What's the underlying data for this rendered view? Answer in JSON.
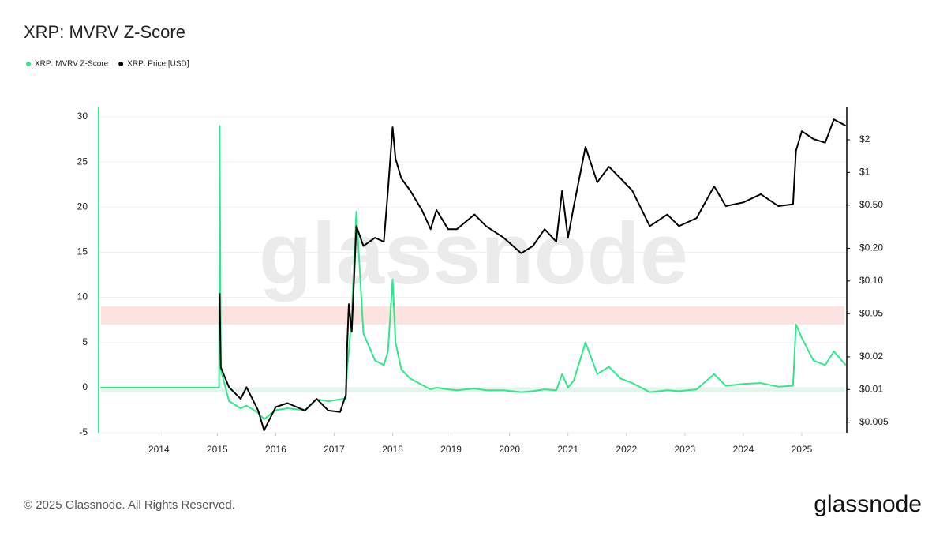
{
  "chart_data": {
    "type": "line",
    "title": "XRP: MVRV Z-Score",
    "x": [
      2013,
      2014,
      2015.03,
      2015.04,
      2015.06,
      2015.2,
      2015.4,
      2015.5,
      2015.7,
      2015.8,
      2016.0,
      2016.2,
      2016.5,
      2016.7,
      2016.9,
      2017.1,
      2017.2,
      2017.22,
      2017.25,
      2017.3,
      2017.38,
      2017.5,
      2017.7,
      2017.85,
      2017.92,
      2018.0,
      2018.05,
      2018.15,
      2018.3,
      2018.5,
      2018.65,
      2018.75,
      2018.95,
      2019.1,
      2019.4,
      2019.6,
      2019.9,
      2020.2,
      2020.4,
      2020.6,
      2020.8,
      2020.9,
      2021.0,
      2021.1,
      2021.3,
      2021.5,
      2021.7,
      2021.9,
      2022.1,
      2022.4,
      2022.7,
      2022.9,
      2023.2,
      2023.5,
      2023.7,
      2024.0,
      2024.3,
      2024.6,
      2024.85,
      2024.9,
      2025.0,
      2025.2,
      2025.4,
      2025.55,
      2025.75
    ],
    "series": [
      {
        "name": "XRP: MVRV Z-Score",
        "color": "#2fe88c",
        "axis": "y",
        "values": [
          0,
          0,
          0,
          29,
          2,
          -1.5,
          -2.3,
          -2,
          -2.8,
          -3.5,
          -2.5,
          -2.3,
          -2.5,
          -1.3,
          -1.5,
          -1.3,
          -1.2,
          2,
          4,
          8,
          19.5,
          6,
          3,
          2.5,
          4,
          12,
          5,
          2,
          1,
          0.3,
          -0.2,
          0,
          -0.2,
          -0.3,
          -0.1,
          -0.3,
          -0.3,
          -0.5,
          -0.4,
          -0.2,
          -0.3,
          1.5,
          0,
          0.8,
          5,
          1.5,
          2.3,
          1,
          0.5,
          -0.5,
          -0.3,
          -0.4,
          -0.2,
          1.5,
          0.2,
          0.4,
          0.5,
          0.1,
          0.2,
          7,
          5.5,
          3,
          2.5,
          4,
          2.5
        ]
      },
      {
        "name": "XRP: Price [USD]",
        "color": "#000000",
        "axis": "y2",
        "values": [
          null,
          null,
          null,
          0.077,
          0.016,
          0.0105,
          0.0082,
          0.0105,
          0.0064,
          0.0042,
          0.0069,
          0.0075,
          0.0064,
          0.0082,
          0.0064,
          0.0062,
          0.0089,
          0.024,
          0.061,
          0.034,
          0.32,
          0.21,
          0.25,
          0.23,
          0.68,
          2.61,
          1.34,
          0.88,
          0.68,
          0.45,
          0.3,
          0.45,
          0.3,
          0.3,
          0.41,
          0.32,
          0.25,
          0.18,
          0.21,
          0.3,
          0.23,
          0.68,
          0.25,
          0.49,
          1.72,
          0.81,
          1.13,
          0.88,
          0.68,
          0.32,
          0.41,
          0.32,
          0.38,
          0.745,
          0.49,
          0.53,
          0.63,
          0.49,
          0.51,
          1.58,
          2.4,
          2.03,
          1.88,
          3.08,
          2.7
        ]
      }
    ],
    "xlim": [
      2012.97,
      2025.77
    ],
    "xticks": [
      2014,
      2015,
      2016,
      2017,
      2018,
      2019,
      2020,
      2021,
      2022,
      2023,
      2024,
      2025
    ],
    "ylim": [
      -5,
      30
    ],
    "yticks": [
      -5,
      0,
      5,
      10,
      15,
      20,
      25,
      30
    ],
    "y2lim": [
      0.004,
      3.25
    ],
    "y2scale": "log",
    "y2ticks": [
      {
        "value": 2,
        "label": "$2"
      },
      {
        "value": 1,
        "label": "$1"
      },
      {
        "value": 0.5,
        "label": "$0.50"
      },
      {
        "value": 0.2,
        "label": "$0.20"
      },
      {
        "value": 0.1,
        "label": "$0.10"
      },
      {
        "value": 0.05,
        "label": "$0.05"
      },
      {
        "value": 0.02,
        "label": "$0.02"
      },
      {
        "value": 0.01,
        "label": "$0.01"
      },
      {
        "value": 0.005,
        "label": "$0.005"
      }
    ],
    "grid": true,
    "legend": "top-left",
    "bands": [
      {
        "from": 7,
        "to": 9,
        "color": "#fde2e2"
      },
      {
        "from": -0.5,
        "to": 0,
        "color": "#e2f5ea"
      }
    ]
  },
  "watermark": "glassnode",
  "footer": "© 2025 Glassnode. All Rights Reserved.",
  "logo": "glassnode"
}
